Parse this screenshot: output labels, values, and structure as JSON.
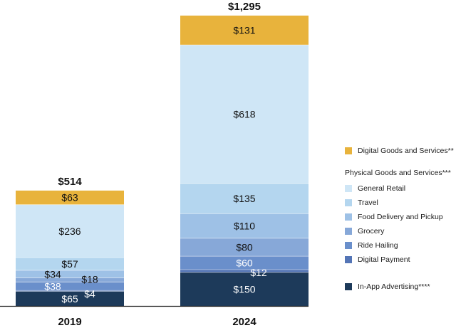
{
  "chart_data": {
    "type": "bar",
    "stacked": true,
    "categories": [
      "2019",
      "2024"
    ],
    "totals": [
      "$514",
      "$1,295"
    ],
    "total_values": [
      514,
      1295
    ],
    "grid": false,
    "legend_position": "right",
    "series": [
      {
        "name": "In-App Advertising****",
        "color": "#1d3a5a",
        "values": [
          65,
          150
        ],
        "labels": [
          "$65",
          "$150"
        ],
        "label_color": "#ffffff"
      },
      {
        "name": "Digital Payment",
        "color": "#5475b6",
        "values": [
          4,
          12
        ],
        "labels": [
          "$4",
          "$12"
        ],
        "label_color": "#ffffff"
      },
      {
        "name": "Ride Hailing",
        "color": "#6a8fcb",
        "values": [
          38,
          60
        ],
        "labels": [
          "$38",
          "$60"
        ],
        "label_color": "#ffffff"
      },
      {
        "name": "Grocery",
        "color": "#87a8d8",
        "values": [
          18,
          80
        ],
        "labels": [
          "$18",
          "$80"
        ],
        "label_color": "#111111"
      },
      {
        "name": "Food Delivery and Pickup",
        "color": "#9ec1e6",
        "values": [
          34,
          110
        ],
        "labels": [
          "$34",
          "$110"
        ],
        "label_color": "#111111"
      },
      {
        "name": "Travel",
        "color": "#b4d6ef",
        "values": [
          57,
          135
        ],
        "labels": [
          "$57",
          "$135"
        ],
        "label_color": "#111111"
      },
      {
        "name": "General Retail",
        "color": "#cfe6f6",
        "values": [
          236,
          618
        ],
        "labels": [
          "$236",
          "$618"
        ],
        "label_color": "#111111"
      },
      {
        "name": "Digital Goods and Services**",
        "color": "#e8b33c",
        "values": [
          63,
          131
        ],
        "labels": [
          "$63",
          "$131"
        ],
        "label_color": "#111111"
      }
    ]
  },
  "legend": {
    "digital_label": "Digital Goods and Services**",
    "physical_header": "Physical Goods and Services***",
    "physical_items": [
      "General Retail",
      "Travel",
      "Food Delivery and Pickup",
      "Grocery",
      "Ride Hailing",
      "Digital Payment"
    ],
    "advertising_label": "In-App Advertising****"
  }
}
